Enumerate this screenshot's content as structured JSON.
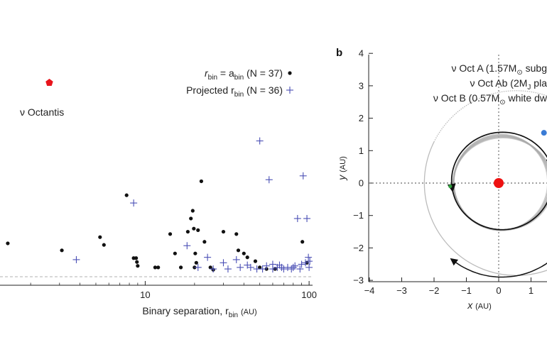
{
  "chart_data": [
    {
      "type": "scatter",
      "panel": "",
      "xlabel": "Binary separation, r",
      "xlabel_sub": "bin",
      "xlabel_unit": "(AU)",
      "xscale": "log",
      "xlim": [
        1.3,
        105
      ],
      "ylim": [
        0.0,
        0.32
      ],
      "xticks": [
        "10",
        "100"
      ],
      "legend_position": "top-right",
      "highlight": {
        "label": "ν Octantis",
        "x": 2.6,
        "y": 0.25,
        "color": "#e8141c"
      },
      "series": [
        {
          "name": "r_bin = a_bin (N = 37)",
          "legend_text": "r",
          "legend_sub": "bin",
          "legend_mid": " = a",
          "legend_sub2": "bin",
          "legend_tail": " (N = 37)",
          "marker": "dot",
          "color": "#111111",
          "points": [
            [
              1.45,
              0.043
            ],
            [
              3.1,
              0.034
            ],
            [
              5.3,
              0.051
            ],
            [
              5.6,
              0.041
            ],
            [
              7.7,
              0.105
            ],
            [
              8.5,
              0.024
            ],
            [
              8.8,
              0.024
            ],
            [
              9.0,
              0.014
            ],
            [
              8.9,
              0.019
            ],
            [
              11.5,
              0.012
            ],
            [
              12.0,
              0.012
            ],
            [
              14.2,
              0.055
            ],
            [
              15.2,
              0.03
            ],
            [
              16.5,
              0.012
            ],
            [
              18.2,
              0.058
            ],
            [
              19.0,
              0.075
            ],
            [
              19.5,
              0.085
            ],
            [
              19.8,
              0.062
            ],
            [
              20.2,
              0.03
            ],
            [
              21.0,
              0.06
            ],
            [
              20.5,
              0.018
            ],
            [
              20.0,
              0.012
            ],
            [
              22.0,
              0.123
            ],
            [
              23.0,
              0.045
            ],
            [
              25.0,
              0.012
            ],
            [
              26.0,
              0.009
            ],
            [
              30.0,
              0.058
            ],
            [
              37.0,
              0.034
            ],
            [
              36.0,
              0.055
            ],
            [
              40.0,
              0.03
            ],
            [
              42.0,
              0.025
            ],
            [
              47.0,
              0.02
            ],
            [
              50.0,
              0.012
            ],
            [
              55.0,
              0.01
            ],
            [
              62.0,
              0.01
            ],
            [
              91.0,
              0.045
            ],
            [
              97.0,
              0.018
            ]
          ]
        },
        {
          "name": "Projected r_bin (N = 36)",
          "legend_text": "Projected r",
          "legend_sub": "bin",
          "legend_tail": " (N = 36)",
          "marker": "plus",
          "color": "#4a4fb5",
          "points": [
            [
              3.8,
              0.022
            ],
            [
              8.5,
              0.095
            ],
            [
              18.0,
              0.04
            ],
            [
              21.0,
              0.012
            ],
            [
              24.0,
              0.025
            ],
            [
              26.0,
              0.01
            ],
            [
              30.0,
              0.018
            ],
            [
              32.0,
              0.01
            ],
            [
              36.0,
              0.022
            ],
            [
              38.0,
              0.012
            ],
            [
              42.0,
              0.015
            ],
            [
              44.0,
              0.012
            ],
            [
              48.0,
              0.01
            ],
            [
              50.0,
              0.175
            ],
            [
              52.0,
              0.01
            ],
            [
              55.0,
              0.014
            ],
            [
              57.0,
              0.125
            ],
            [
              60.0,
              0.01
            ],
            [
              64.0,
              0.012
            ],
            [
              66.0,
              0.015
            ],
            [
              70.0,
              0.01
            ],
            [
              74.0,
              0.012
            ],
            [
              78.0,
              0.01
            ],
            [
              82.0,
              0.014
            ],
            [
              85.0,
              0.075
            ],
            [
              88.0,
              0.01
            ],
            [
              92.0,
              0.13
            ],
            [
              95.0,
              0.018
            ],
            [
              97.0,
              0.075
            ],
            [
              99.0,
              0.025
            ],
            [
              100.0,
              0.012
            ],
            [
              101.0,
              0.02
            ],
            [
              60.0,
              0.016
            ],
            [
              68.0,
              0.012
            ],
            [
              80.0,
              0.012
            ],
            [
              90.0,
              0.016
            ]
          ]
        }
      ]
    },
    {
      "type": "line",
      "panel": "b",
      "xlabel": "x",
      "xlabel_unit": "(AU)",
      "ylabel": "y",
      "ylabel_unit": "(AU)",
      "xlim": [
        -4,
        1.5
      ],
      "ylim": [
        -3,
        4
      ],
      "xticks": [
        "−4",
        "−3",
        "−2",
        "−1",
        "0",
        "1"
      ],
      "yticks": [
        "−3",
        "−2",
        "−1",
        "0",
        "1",
        "2",
        "3",
        "4"
      ],
      "legend_position": "top-right",
      "legend": [
        {
          "text": "ν Oct A (1.57M",
          "sub": "⊙",
          "tail": " subg"
        },
        {
          "text": "ν Oct Ab (2M",
          "sub": "J",
          "tail": " pla"
        },
        {
          "text": "ν Oct B (0.57M",
          "sub": "⊙",
          "tail": " white dw"
        }
      ],
      "primary": {
        "x": 0.0,
        "y": 0.0,
        "color": "#ee1111"
      },
      "planet_marker": {
        "x": -1.5,
        "y": -0.1,
        "color": "#2e9e3c"
      },
      "companion_marker": {
        "x": 1.4,
        "y": 1.55,
        "color": "#3a7bd5"
      },
      "binary_orbit": {
        "cx": 0.55,
        "cy": 0.0,
        "r": 2.85,
        "color": "#bbbbbb"
      },
      "planet_orbit": {
        "cx": 0.1,
        "cy": 0.0,
        "rx": 1.5,
        "ry": 1.45,
        "color": "#aaaaaa"
      }
    }
  ]
}
